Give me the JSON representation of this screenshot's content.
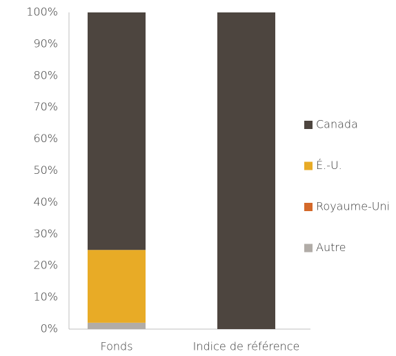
{
  "chart_data": {
    "type": "stacked_bar",
    "categories": [
      "Fonds",
      "Indice de référence"
    ],
    "series": [
      {
        "name": "Autre",
        "color": "#b1aca7",
        "values": [
          2,
          0
        ]
      },
      {
        "name": "Royaume-Uni",
        "color": "#d4692a",
        "values": [
          0,
          0
        ]
      },
      {
        "name": "É.-U.",
        "color": "#e8ab26",
        "values": [
          23,
          0
        ]
      },
      {
        "name": "Canada",
        "color": "#4d453f",
        "values": [
          75,
          100
        ]
      }
    ],
    "ylim": [
      0,
      100
    ],
    "yticks": [
      {
        "value": 0,
        "label": "0%"
      },
      {
        "value": 10,
        "label": "10%"
      },
      {
        "value": 20,
        "label": "20%"
      },
      {
        "value": 30,
        "label": "30%"
      },
      {
        "value": 40,
        "label": "40%"
      },
      {
        "value": 50,
        "label": "50%"
      },
      {
        "value": 60,
        "label": "60%"
      },
      {
        "value": 70,
        "label": "70%"
      },
      {
        "value": 80,
        "label": "80%"
      },
      {
        "value": 90,
        "label": "90%"
      },
      {
        "value": 100,
        "label": "100%"
      }
    ],
    "grid": false,
    "legend": "right"
  }
}
